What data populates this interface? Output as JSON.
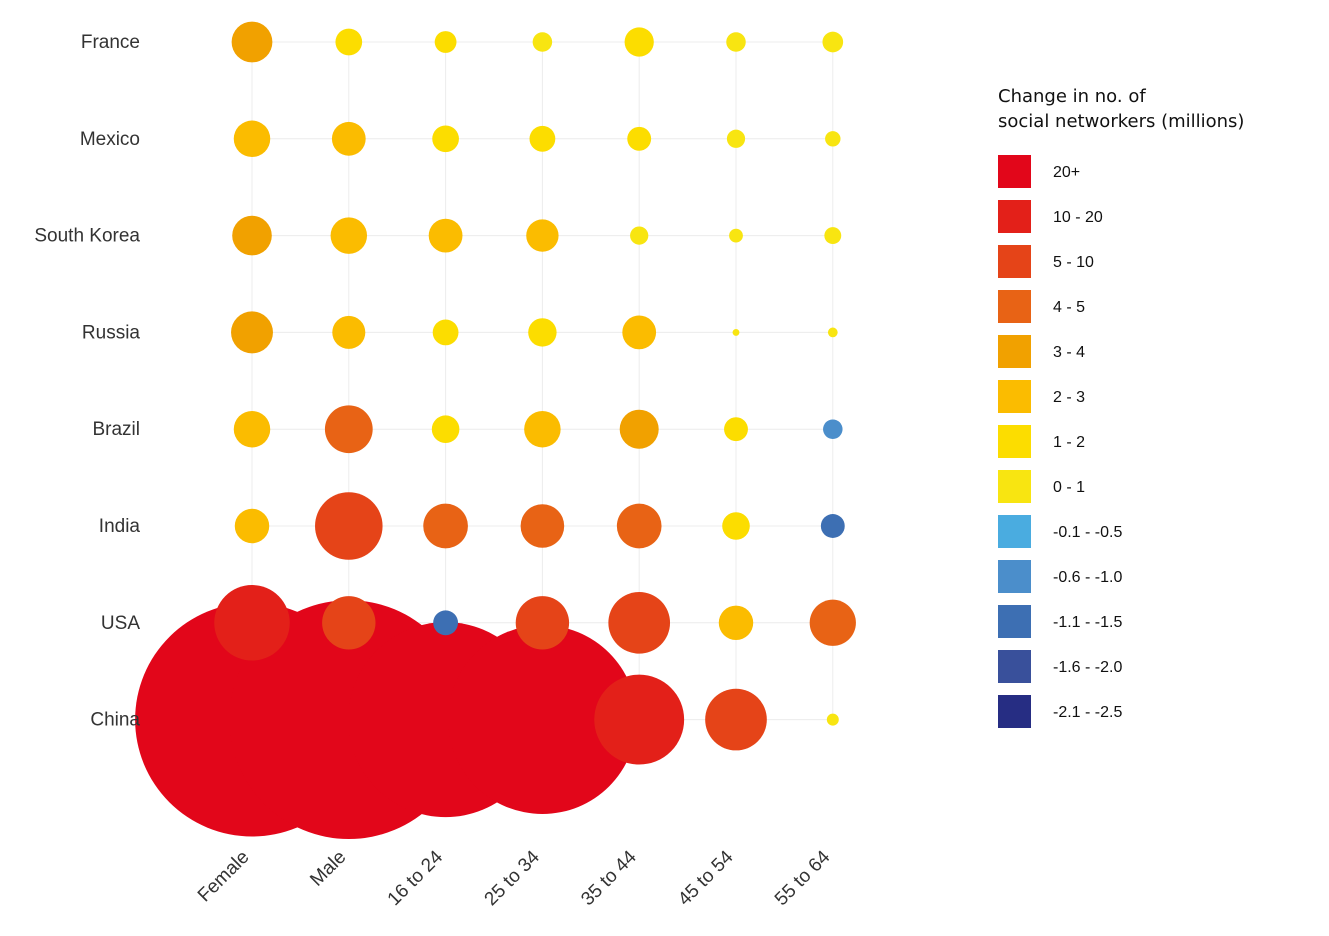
{
  "chart_data": {
    "type": "bubble-matrix",
    "rows": [
      "France",
      "Mexico",
      "South Korea",
      "Russia",
      "Brazil",
      "India",
      "USA",
      "China"
    ],
    "columns": [
      "Female",
      "Male",
      "16 to 24",
      "25 to 34",
      "35 to 44",
      "45 to 54",
      "55 to 64"
    ],
    "values": [
      [
        3.5,
        1.5,
        1.0,
        0.8,
        1.8,
        0.8,
        0.9
      ],
      [
        2.8,
        2.4,
        1.5,
        1.4,
        1.2,
        0.7,
        0.5
      ],
      [
        3.3,
        2.8,
        2.4,
        2.2,
        0.7,
        0.4,
        0.6
      ],
      [
        3.7,
        2.3,
        1.4,
        1.7,
        2.4,
        0.1,
        0.2
      ],
      [
        2.8,
        4.8,
        1.6,
        2.8,
        3.2,
        1.2,
        -0.8
      ],
      [
        2.5,
        9.6,
        4.2,
        4.0,
        4.2,
        1.6,
        -1.2
      ],
      [
        12,
        6.0,
        -1.3,
        6.0,
        8.0,
        2.5,
        4.5
      ],
      [
        115,
        120,
        80,
        75,
        17,
        8,
        0.3
      ]
    ],
    "grid": true,
    "legend": {
      "title_line1": "Change in no. of",
      "title_line2": "social networkers (millions)",
      "position": "right",
      "items": [
        {
          "label": "20+",
          "color": "#e2061a",
          "min": 20,
          "max": 1000
        },
        {
          "label": "10 - 20",
          "color": "#e32019",
          "min": 10,
          "max": 20
        },
        {
          "label": "5 - 10",
          "color": "#e54418",
          "min": 5,
          "max": 10
        },
        {
          "label": "4 - 5",
          "color": "#e86315",
          "min": 4,
          "max": 5
        },
        {
          "label": "3 - 4",
          "color": "#f1a100",
          "min": 3,
          "max": 4
        },
        {
          "label": "2 - 3",
          "color": "#fbbc00",
          "min": 2,
          "max": 3
        },
        {
          "label": "1 - 2",
          "color": "#fcdd00",
          "min": 1,
          "max": 2
        },
        {
          "label": "0 - 1",
          "color": "#f8e511",
          "min": 0,
          "max": 1
        },
        {
          "label": "-0.1 - -0.5",
          "color": "#4aace0",
          "min": -0.5,
          "max": 0
        },
        {
          "label": "-0.6 - -1.0",
          "color": "#4b8ecb",
          "min": -1.0,
          "max": -0.5
        },
        {
          "label": "-1.1 - -1.5",
          "color": "#3d6fb3",
          "min": -1.5,
          "max": -1.0
        },
        {
          "label": "-1.6 - -2.0",
          "color": "#39509b",
          "min": -2.0,
          "max": -1.5
        },
        {
          "label": "-2.1 - -2.5",
          "color": "#262d83",
          "min": -2.5,
          "max": -2.0
        }
      ]
    }
  }
}
